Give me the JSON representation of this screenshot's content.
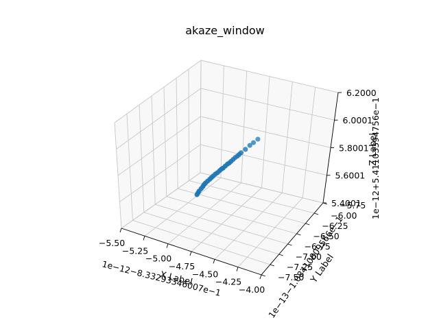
{
  "chart_data": {
    "type": "scatter",
    "title": "akaze_window",
    "colors": {
      "points": "#1f77b4"
    },
    "x_axis": {
      "label": "X Label",
      "offset_text": "1e−12−8.33293346007e−1",
      "ticks": [
        "−5.50",
        "−5.25",
        "−5.00",
        "−4.75",
        "−4.50",
        "−4.25",
        "−4.00"
      ],
      "range": [
        -5.5,
        -4.0
      ]
    },
    "y_axis": {
      "label": "Y Label",
      "offset_text": "1e−13−1.08410809566e−1",
      "ticks": [
        "−7.50",
        "−7.25",
        "−7.00",
        "−6.75",
        "−6.50",
        "−6.25",
        "−6.00",
        "−5.75"
      ],
      "range": [
        -7.5,
        -5.75
      ]
    },
    "z_axis": {
      "label": "Z Label",
      "offset_text": "1e−12+5.41103394756e−1",
      "ticks": [
        "5.4001",
        "5.6001",
        "5.8001",
        "6.0001",
        "6.2000"
      ],
      "range": [
        5.4001,
        6.2
      ]
    },
    "grid": true,
    "points": [
      {
        "x": 0.36,
        "y": 0.35,
        "z": 0.26
      },
      {
        "x": 0.365,
        "y": 0.355,
        "z": 0.275
      },
      {
        "x": 0.37,
        "y": 0.36,
        "z": 0.29
      },
      {
        "x": 0.38,
        "y": 0.37,
        "z": 0.31
      },
      {
        "x": 0.39,
        "y": 0.375,
        "z": 0.33
      },
      {
        "x": 0.395,
        "y": 0.38,
        "z": 0.345
      },
      {
        "x": 0.4,
        "y": 0.39,
        "z": 0.355
      },
      {
        "x": 0.41,
        "y": 0.4,
        "z": 0.37
      },
      {
        "x": 0.42,
        "y": 0.41,
        "z": 0.385
      },
      {
        "x": 0.43,
        "y": 0.415,
        "z": 0.4
      },
      {
        "x": 0.44,
        "y": 0.42,
        "z": 0.415
      },
      {
        "x": 0.45,
        "y": 0.43,
        "z": 0.43
      },
      {
        "x": 0.46,
        "y": 0.44,
        "z": 0.44
      },
      {
        "x": 0.47,
        "y": 0.45,
        "z": 0.455
      },
      {
        "x": 0.48,
        "y": 0.455,
        "z": 0.47
      },
      {
        "x": 0.49,
        "y": 0.46,
        "z": 0.48
      },
      {
        "x": 0.5,
        "y": 0.47,
        "z": 0.495
      },
      {
        "x": 0.51,
        "y": 0.48,
        "z": 0.51
      },
      {
        "x": 0.52,
        "y": 0.485,
        "z": 0.52
      },
      {
        "x": 0.53,
        "y": 0.49,
        "z": 0.535
      },
      {
        "x": 0.54,
        "y": 0.5,
        "z": 0.55
      },
      {
        "x": 0.55,
        "y": 0.51,
        "z": 0.565
      },
      {
        "x": 0.56,
        "y": 0.52,
        "z": 0.575
      },
      {
        "x": 0.57,
        "y": 0.525,
        "z": 0.59
      },
      {
        "x": 0.58,
        "y": 0.53,
        "z": 0.605
      },
      {
        "x": 0.6,
        "y": 0.55,
        "z": 0.63
      },
      {
        "x": 0.62,
        "y": 0.57,
        "z": 0.66
      },
      {
        "x": 0.64,
        "y": 0.58,
        "z": 0.685
      },
      {
        "x": 0.66,
        "y": 0.6,
        "z": 0.71
      }
    ]
  }
}
